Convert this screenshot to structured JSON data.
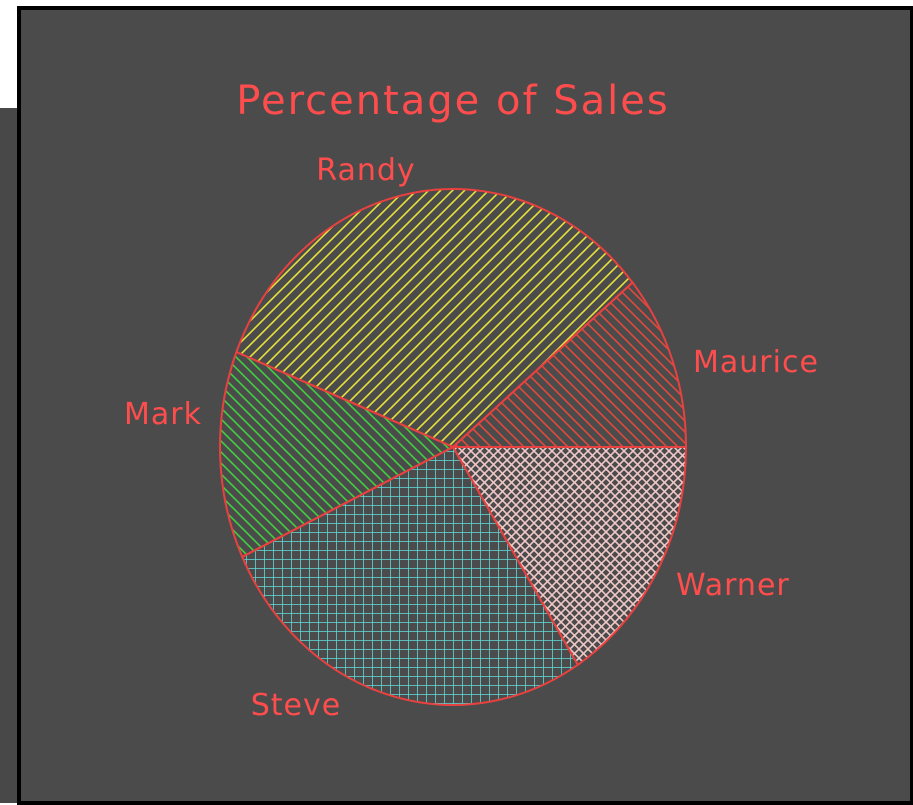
{
  "colors": {
    "background": "#4b4b4b",
    "outline": "#e8413f",
    "label": "#ff4d4d"
  },
  "chart_data": {
    "type": "pie",
    "title": "Percentage of Sales",
    "slices": [
      {
        "label": "Maurice",
        "value": 11,
        "color": "#e04a3c",
        "pattern": "diag-left"
      },
      {
        "label": "Randy",
        "value": 33,
        "color": "#e6e23a",
        "pattern": "diag-right"
      },
      {
        "label": "Mark",
        "value": 13,
        "color": "#3fcf3f",
        "pattern": "diag-left"
      },
      {
        "label": "Steve",
        "value": 27,
        "color": "#5fd6d6",
        "pattern": "grid"
      },
      {
        "label": "Warner",
        "value": 16,
        "color": "#f0c8c8",
        "pattern": "crosshatch"
      }
    ],
    "legend": "none"
  }
}
